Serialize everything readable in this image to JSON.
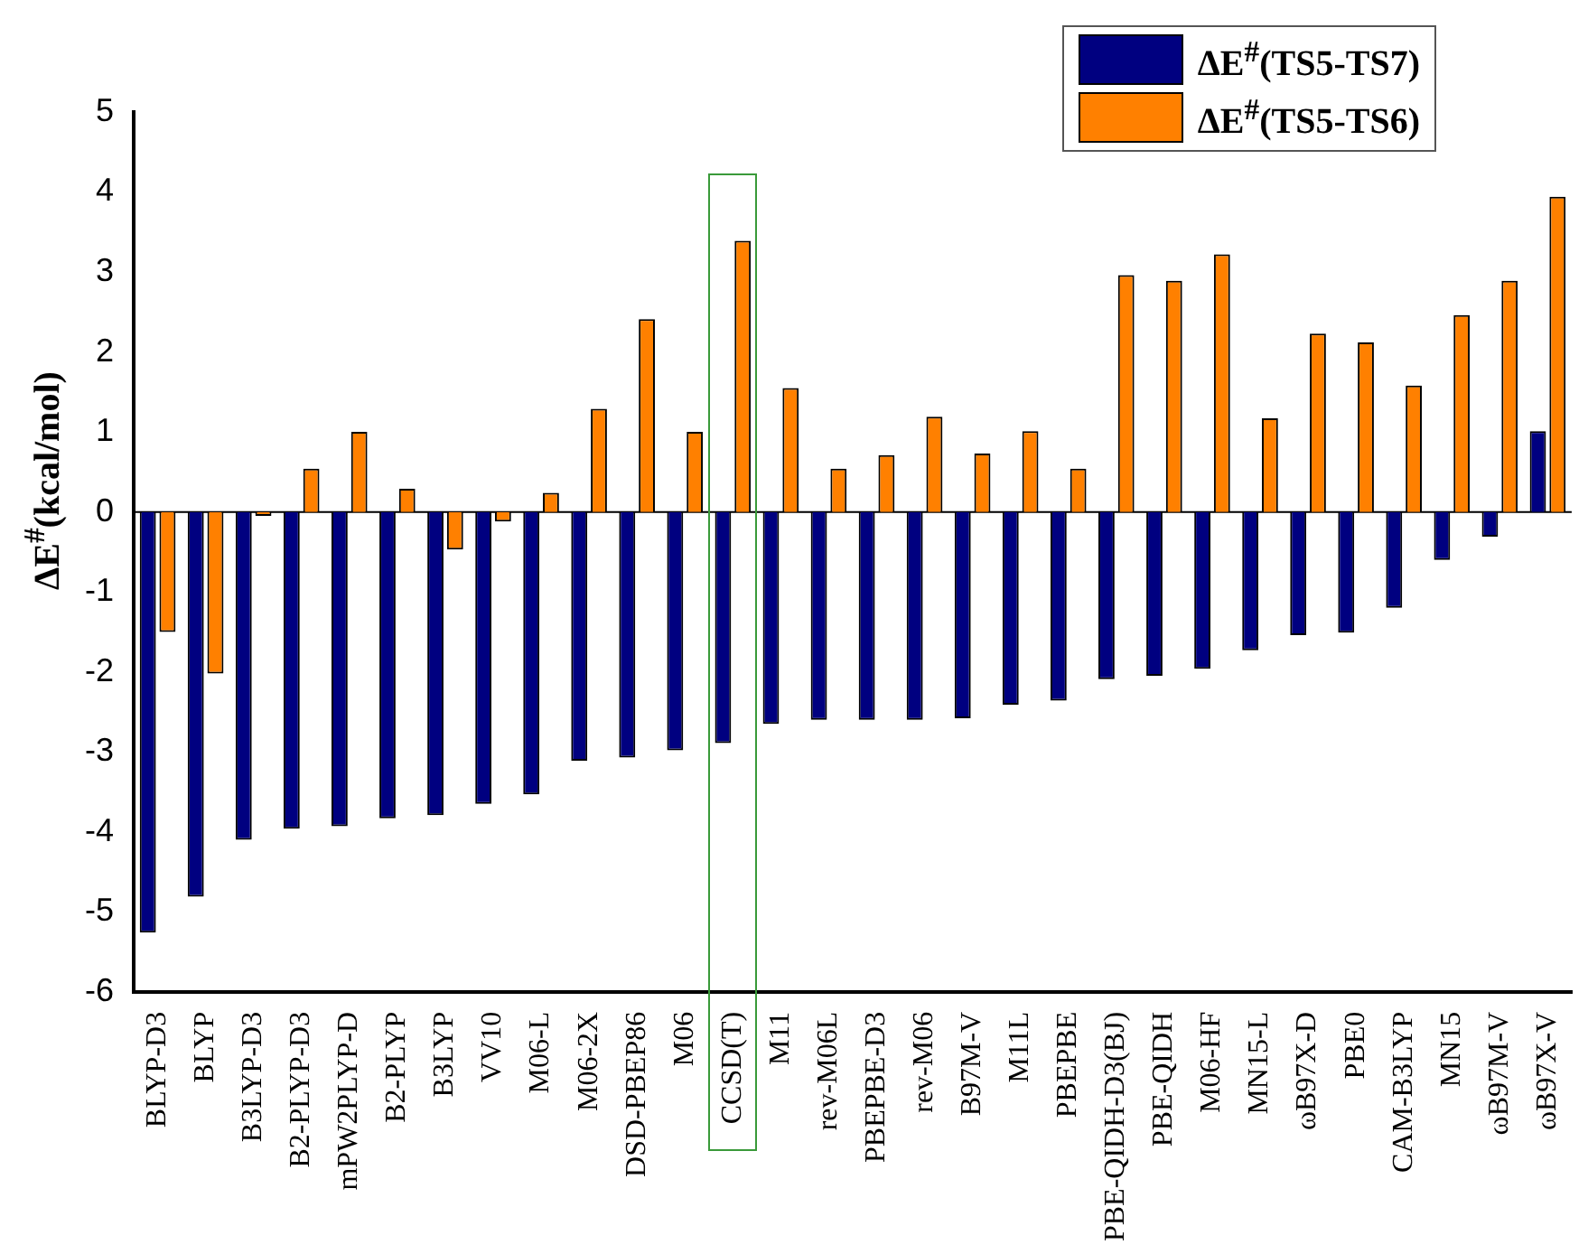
{
  "chart_data": {
    "type": "bar",
    "ylabel": "ΔE$^{#}$(kcal/mol)",
    "categories": [
      "BLYP-D3",
      "BLYP",
      "B3LYP-D3",
      "B2-PLYP-D3",
      "mPW2PLYP-D",
      "B2-PLYP",
      "B3LYP",
      "VV10",
      "M06-L",
      "M06-2X",
      "DSD-PBEP86",
      "M06",
      "CCSD(T)",
      "M11",
      "rev-M06L",
      "PBEPBE-D3",
      "rev-M06",
      "B97M-V",
      "M11L",
      "PBEPBE",
      "PBE-QIDH-D3(BJ)",
      "PBE-QIDH",
      "M06-HF",
      "MN15-L",
      "ωB97X-D",
      "PBE0",
      "CAM-B3LYP",
      "MN15",
      "ωB97M-V",
      "ωB97X-V"
    ],
    "series": [
      {
        "name": "ΔE$^{#}$(TS5-TS7)",
        "color": "#000080",
        "values": [
          -5.26,
          -4.81,
          -4.1,
          -3.96,
          -3.93,
          -3.83,
          -3.79,
          -3.65,
          -3.53,
          -3.11,
          -3.07,
          -2.98,
          -2.89,
          -2.65,
          -2.6,
          -2.6,
          -2.6,
          -2.58,
          -2.41,
          -2.36,
          -2.09,
          -2.05,
          -1.96,
          -1.73,
          -1.54,
          -1.51,
          -1.2,
          -0.6,
          -0.31,
          1.01
        ]
      },
      {
        "name": "ΔE$^{#}$(TS5-TS6)",
        "color": "#ff8000",
        "values": [
          -1.5,
          -2.02,
          -0.05,
          0.54,
          1.0,
          0.29,
          -0.47,
          -0.12,
          0.24,
          1.29,
          2.41,
          1.0,
          3.39,
          1.55,
          0.54,
          0.71,
          1.19,
          0.73,
          1.01,
          0.54,
          2.96,
          2.89,
          3.22,
          1.17,
          2.23,
          2.12,
          1.58,
          2.46,
          2.89,
          3.94
        ]
      }
    ],
    "ylim": [
      -6,
      5
    ],
    "yticks": [
      -6,
      -5,
      -4,
      -3,
      -2,
      -1,
      0,
      1,
      2,
      3,
      4,
      5
    ],
    "grid": false,
    "legend": "top right",
    "ref_lines": [
      {
        "axis": "y",
        "value": 0,
        "color": "#000000"
      }
    ]
  }
}
